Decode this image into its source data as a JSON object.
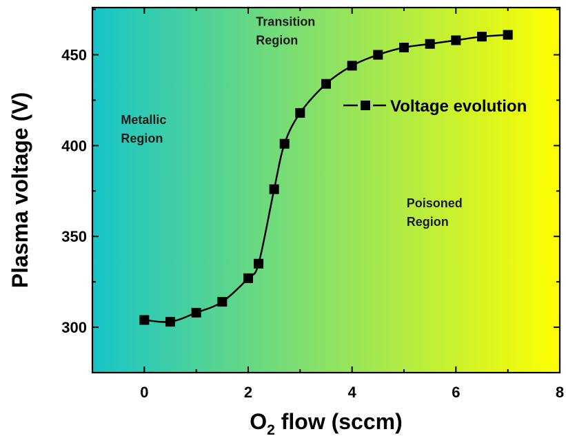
{
  "chart_data": {
    "type": "line",
    "xlabel": "O2 flow (sccm)",
    "xlabel_main": "O",
    "xlabel_sub": "2",
    "xlabel_rest": " flow (sccm)",
    "ylabel": "Plasma voltage (V)",
    "xlim": [
      -1,
      8
    ],
    "ylim": [
      275,
      476
    ],
    "x_ticks": [
      0,
      2,
      4,
      6,
      8
    ],
    "y_ticks": [
      300,
      350,
      400,
      450
    ],
    "background_gradient": [
      "#17c4c8",
      "#ffff00"
    ],
    "series": [
      {
        "name": "Voltage evolution",
        "color": "#000000",
        "marker": "square",
        "x": [
          0,
          0.5,
          1,
          1.5,
          2,
          2.2,
          2.5,
          2.7,
          3,
          3.5,
          4,
          4.5,
          5,
          5.5,
          6,
          6.5,
          7
        ],
        "y": [
          304,
          303,
          308,
          314,
          327,
          335,
          376,
          401,
          418,
          434,
          444,
          450,
          454,
          456,
          458,
          460,
          461
        ]
      }
    ],
    "annotations": [
      {
        "key": "metallic",
        "lines": [
          "Metallic",
          "Region"
        ],
        "x": -0.45,
        "y": 412
      },
      {
        "key": "transition",
        "lines": [
          "Transition",
          "Region"
        ],
        "x": 2.15,
        "y": 466
      },
      {
        "key": "poisoned",
        "lines": [
          "Poisoned",
          "Region"
        ],
        "x": 5.05,
        "y": 366
      }
    ],
    "legend": {
      "label": "Voltage evolution",
      "placement": "top-right"
    }
  }
}
